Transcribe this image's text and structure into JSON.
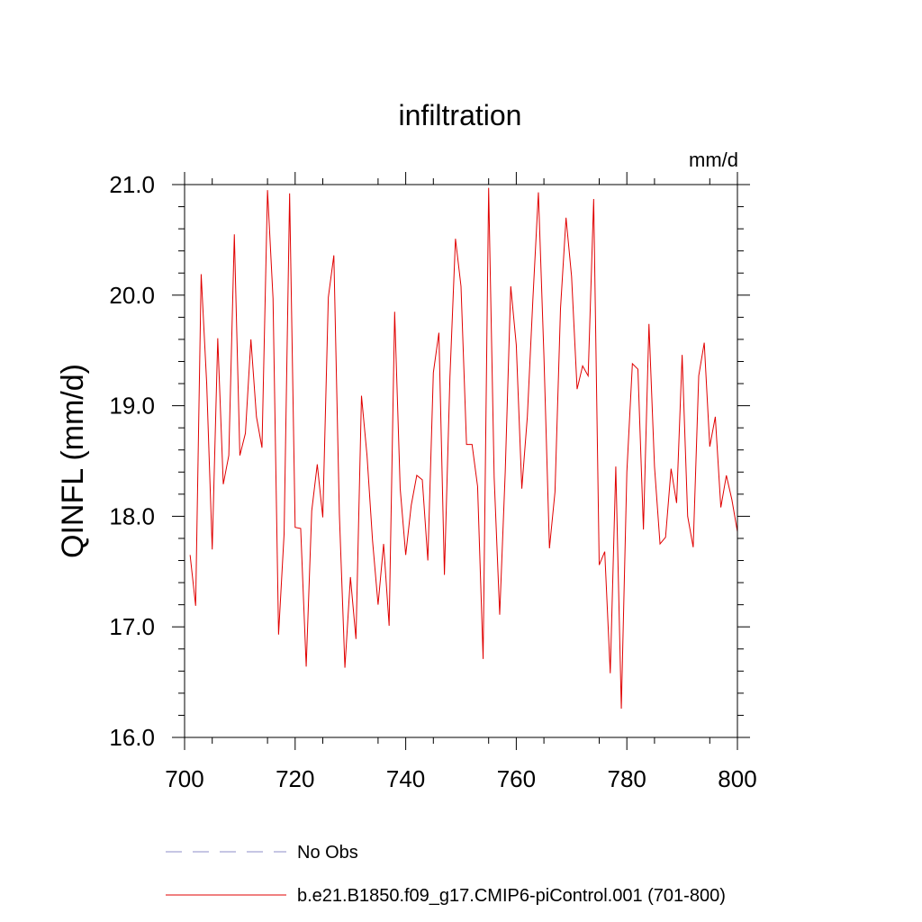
{
  "chart_data": {
    "type": "line",
    "title": "infiltration",
    "units": "mm/d",
    "ylabel": "QINFL  (mm/d)",
    "xlabel": "",
    "xlim": [
      700,
      800
    ],
    "ylim": [
      16.0,
      21.0
    ],
    "x_ticks": [
      "700",
      "720",
      "740",
      "760",
      "780",
      "800"
    ],
    "y_ticks": [
      "16.0",
      "17.0",
      "18.0",
      "19.0",
      "20.0",
      "21.0"
    ],
    "grid": false,
    "legend_position": "bottom-left",
    "series": [
      {
        "name": "No Obs",
        "color": "#8c8cc8",
        "dash": true,
        "x": [],
        "y": []
      },
      {
        "name": "b.e21.B1850.f09_g17.CMIP6-piControl.001 (701-800)",
        "color": "#e00000",
        "dash": false,
        "x": [
          701,
          702,
          703,
          704,
          705,
          706,
          707,
          708,
          709,
          710,
          711,
          712,
          713,
          714,
          715,
          716,
          717,
          718,
          719,
          720,
          721,
          722,
          723,
          724,
          725,
          726,
          727,
          728,
          729,
          730,
          731,
          732,
          733,
          734,
          735,
          736,
          737,
          738,
          739,
          740,
          741,
          742,
          743,
          744,
          745,
          746,
          747,
          748,
          749,
          750,
          751,
          752,
          753,
          754,
          755,
          756,
          757,
          758,
          759,
          760,
          761,
          762,
          763,
          764,
          765,
          766,
          767,
          768,
          769,
          770,
          771,
          772,
          773,
          774,
          775,
          776,
          777,
          778,
          779,
          780,
          781,
          782,
          783,
          784,
          785,
          786,
          787,
          788,
          789,
          790,
          791,
          792,
          793,
          794,
          795,
          796,
          797,
          798,
          799,
          800
        ],
        "y": [
          17.65,
          17.19,
          20.19,
          19.2,
          17.7,
          19.61,
          18.29,
          18.55,
          20.55,
          18.55,
          18.75,
          19.6,
          18.9,
          18.62,
          20.95,
          19.97,
          16.93,
          17.84,
          20.92,
          17.9,
          17.89,
          16.64,
          18.05,
          18.47,
          17.99,
          19.98,
          20.36,
          18.02,
          16.63,
          17.45,
          16.89,
          19.09,
          18.55,
          17.78,
          17.2,
          17.75,
          17.01,
          19.85,
          18.25,
          17.65,
          18.1,
          18.37,
          18.33,
          17.6,
          19.3,
          19.66,
          17.47,
          19.26,
          20.51,
          20.08,
          18.65,
          18.65,
          18.27,
          16.71,
          20.97,
          18.35,
          17.11,
          18.4,
          20.08,
          19.55,
          18.25,
          18.9,
          19.96,
          20.93,
          19.45,
          17.71,
          18.22,
          19.88,
          20.7,
          20.17,
          19.15,
          19.36,
          19.27,
          20.87,
          17.56,
          17.68,
          16.58,
          18.45,
          16.26,
          18.4,
          19.38,
          19.33,
          17.88,
          19.74,
          18.45,
          17.75,
          17.81,
          18.43,
          18.12,
          19.46,
          18.0,
          17.72,
          19.27,
          19.57,
          18.63,
          18.9,
          18.08,
          18.37,
          18.15,
          17.86
        ]
      }
    ]
  }
}
